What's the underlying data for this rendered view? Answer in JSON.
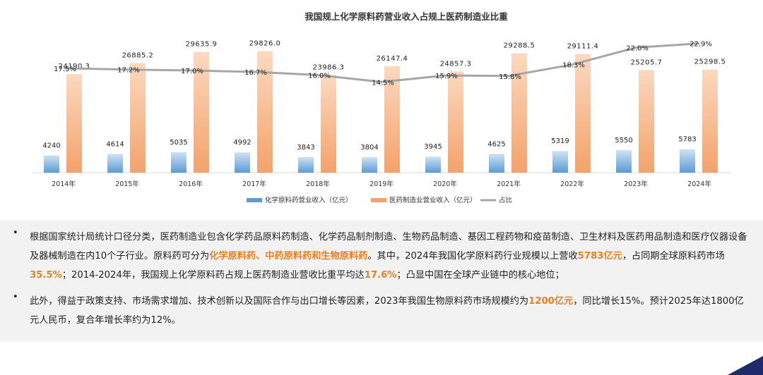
{
  "chart_data": {
    "type": "bar",
    "title": "我国规上化学原料药营业收入占规上医药制造业比重",
    "categories": [
      "2014年",
      "2015年",
      "2016年",
      "2017年",
      "2018年",
      "2019年",
      "2020年",
      "2021年",
      "2022年",
      "2023年",
      "2024年"
    ],
    "series": [
      {
        "name": "化学原料药营业收入（亿元）",
        "type": "bar",
        "color": "#5b9bd5",
        "values": [
          4240,
          4614,
          5035,
          4992,
          3843,
          3804,
          3945,
          4625,
          5319,
          5550,
          5783
        ],
        "labels": [
          "4240",
          "4614",
          "5035",
          "4992",
          "3843",
          "3804",
          "3945",
          "4625",
          "5319",
          "5550",
          "5783"
        ]
      },
      {
        "name": "医药制造业营业收入（亿元）",
        "type": "bar",
        "color": "#f4a26b",
        "values": [
          24190.3,
          26885.2,
          29635.9,
          29826.0,
          23986.3,
          26147.4,
          24857.3,
          29288.5,
          29111.4,
          25205.7,
          25298.5
        ],
        "labels": [
          "24190.3",
          "26885.2",
          "29635.9",
          "29826.0",
          "23986.3",
          "26147.4",
          "24857.3",
          "29288.5",
          "29111.4",
          "25205.7",
          "25298.5"
        ]
      },
      {
        "name": "占比",
        "type": "line",
        "color": "#a6a6a6",
        "values": [
          17.5,
          17.2,
          17.0,
          16.7,
          16.0,
          14.5,
          15.9,
          15.8,
          18.3,
          22.0,
          22.9
        ],
        "labels": [
          "17.5%",
          "17.2%",
          "17.0%",
          "16.7%",
          "16.0%",
          "14.5%",
          "15.9%",
          "15.8%",
          "18.3%",
          "22.0%",
          "22.9%"
        ]
      }
    ],
    "legend_position": "bottom",
    "grid": false
  },
  "notes": {
    "bullet": "•",
    "p1": [
      {
        "t": "根据国家统计局统计口径分类，医药制造业包含化学药品原料药制造、化学药品制剂制造、生物药品制造、基因工程药物和疫苗制造、卫生材料及医药用品制造和医疗仪器设备及器械制造在内10个子行业。原料药可分为",
        "h": false
      },
      {
        "t": "化学原料药、中药原料药和生物原料药",
        "h": true
      },
      {
        "t": "。其中，2024年我国化学原料药行业规模以上营收",
        "h": false
      },
      {
        "t": "5783亿元",
        "h": true
      },
      {
        "t": "，占同期全球原料药市场",
        "h": false
      },
      {
        "t": "35.5%",
        "h": true
      },
      {
        "t": "；2014-2024年，我国规上化学原料药占规上医药制造业营收比重平均达",
        "h": false
      },
      {
        "t": "17.6%",
        "h": true
      },
      {
        "t": "；凸显中国在全球产业链中的核心地位；",
        "h": false
      }
    ],
    "p2": [
      {
        "t": "此外，得益于政策支持、市场需求增加、技术创新以及国际合作与出口增长等因素，2023年我国生物原料药市场规模约为",
        "h": false
      },
      {
        "t": "1200亿元",
        "h": true
      },
      {
        "t": "，同比增长15%。预计2025年达1800亿元人民币，复合年增长率约为12%。",
        "h": false
      }
    ]
  },
  "colors": {
    "accent": "#e8801e",
    "bar_a": "#5b9bd5",
    "bar_b": "#f4a26b",
    "line": "#a6a6a6",
    "corner": "#1f2a6b"
  }
}
